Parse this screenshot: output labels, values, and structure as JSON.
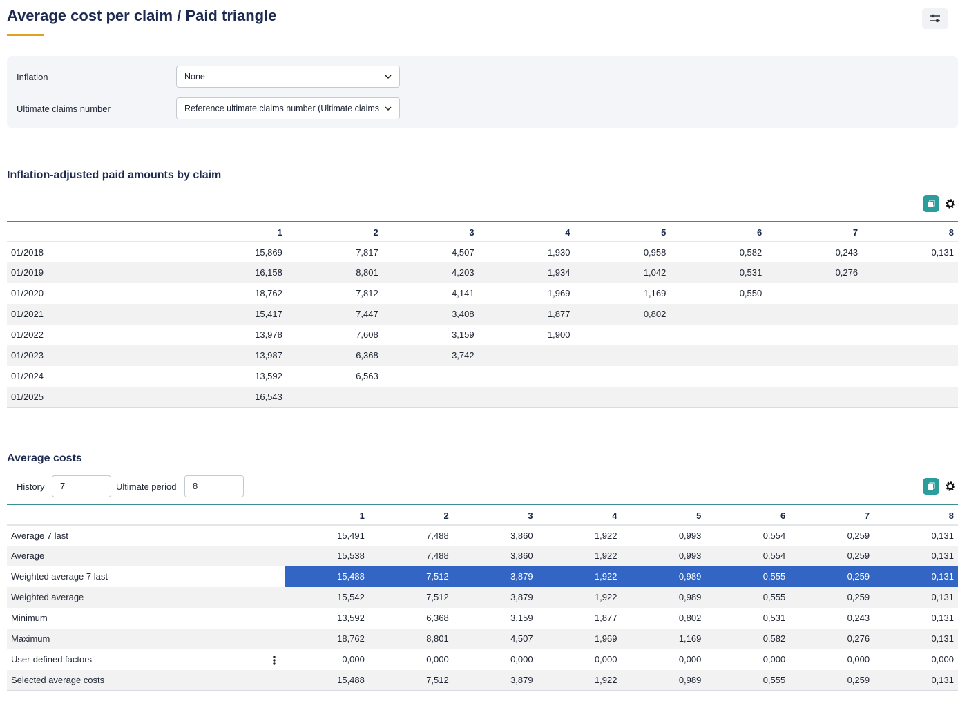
{
  "header": {
    "title": "Average cost per claim / Paid triangle"
  },
  "filters": [
    {
      "label": "Inflation",
      "value": "None"
    },
    {
      "label": "Ultimate claims number",
      "value": "Reference ultimate claims number (Ultimate claims"
    }
  ],
  "triangle": {
    "title": "Inflation-adjusted paid amounts by claim",
    "columns": [
      "1",
      "2",
      "3",
      "4",
      "5",
      "6",
      "7",
      "8"
    ],
    "rows": [
      {
        "label": "01/2018",
        "cells": [
          "15,869",
          "7,817",
          "4,507",
          "1,930",
          "0,958",
          "0,582",
          "0,243",
          "0,131"
        ]
      },
      {
        "label": "01/2019",
        "cells": [
          "16,158",
          "8,801",
          "4,203",
          "1,934",
          "1,042",
          "0,531",
          "0,276"
        ]
      },
      {
        "label": "01/2020",
        "cells": [
          "18,762",
          "7,812",
          "4,141",
          "1,969",
          "1,169",
          "0,550"
        ]
      },
      {
        "label": "01/2021",
        "cells": [
          "15,417",
          "7,447",
          "3,408",
          "1,877",
          "0,802"
        ]
      },
      {
        "label": "01/2022",
        "cells": [
          "13,978",
          "7,608",
          "3,159",
          "1,900"
        ]
      },
      {
        "label": "01/2023",
        "cells": [
          "13,987",
          "6,368",
          "3,742"
        ]
      },
      {
        "label": "01/2024",
        "cells": [
          "13,592",
          "6,563"
        ]
      },
      {
        "label": "01/2025",
        "cells": [
          "16,543"
        ]
      }
    ]
  },
  "averages": {
    "title": "Average costs",
    "history_label": "History",
    "history_value": "7",
    "ultimate_label": "Ultimate period",
    "ultimate_value": "8",
    "highlighted_row": 2,
    "columns": [
      "1",
      "2",
      "3",
      "4",
      "5",
      "6",
      "7",
      "8"
    ],
    "rows": [
      {
        "label": "Average 7 last",
        "cells": [
          "15,491",
          "7,488",
          "3,860",
          "1,922",
          "0,993",
          "0,554",
          "0,259",
          "0,131"
        ]
      },
      {
        "label": "Average",
        "cells": [
          "15,538",
          "7,488",
          "3,860",
          "1,922",
          "0,993",
          "0,554",
          "0,259",
          "0,131"
        ]
      },
      {
        "label": "Weighted average 7 last",
        "cells": [
          "15,488",
          "7,512",
          "3,879",
          "1,922",
          "0,989",
          "0,555",
          "0,259",
          "0,131"
        ]
      },
      {
        "label": "Weighted average",
        "cells": [
          "15,542",
          "7,512",
          "3,879",
          "1,922",
          "0,989",
          "0,555",
          "0,259",
          "0,131"
        ]
      },
      {
        "label": "Minimum",
        "cells": [
          "13,592",
          "6,368",
          "3,159",
          "1,877",
          "0,802",
          "0,531",
          "0,243",
          "0,131"
        ]
      },
      {
        "label": "Maximum",
        "cells": [
          "18,762",
          "8,801",
          "4,507",
          "1,969",
          "1,169",
          "0,582",
          "0,276",
          "0,131"
        ]
      },
      {
        "label": "User-defined factors",
        "cells": [
          "0,000",
          "0,000",
          "0,000",
          "0,000",
          "0,000",
          "0,000",
          "0,000",
          "0,000"
        ]
      },
      {
        "label": "Selected average costs",
        "cells": [
          "15,488",
          "7,512",
          "3,879",
          "1,922",
          "0,989",
          "0,555",
          "0,259",
          "0,131"
        ]
      }
    ]
  }
}
